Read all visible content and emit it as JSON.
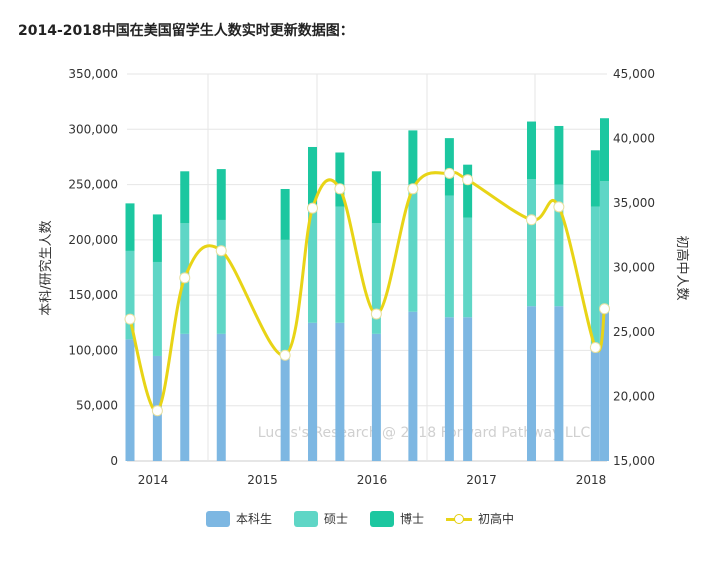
{
  "title": "2014-2018中国在美国留学生人数实时更新数据图：",
  "watermark": "Lucas's Research @ 2018 Forward Pathway LLC",
  "chart_data": {
    "type": "bar+line",
    "title": "2014-2018中国在美国留学生人数实时更新数据图：",
    "ylabel": "本科/研究生人数",
    "y2label": "初高中人数",
    "ylim": [
      0,
      350000
    ],
    "y2lim": [
      15000,
      45000
    ],
    "yticks": [
      "0",
      "50,000",
      "100,000",
      "150,000",
      "200,000",
      "250,000",
      "300,000",
      "350,000"
    ],
    "y2ticks": [
      "15,000",
      "20,000",
      "25,000",
      "30,000",
      "35,000",
      "40,000",
      "45,000"
    ],
    "xticks": [
      "2014",
      "2015",
      "2016",
      "2017",
      "2018"
    ],
    "x": [
      "2013-10",
      "2014-01",
      "2014-04",
      "2014-08",
      "2015-03",
      "2015-06",
      "2015-09",
      "2016-01",
      "2016-05",
      "2016-09",
      "2016-11",
      "2017-06",
      "2017-09",
      "2018-01",
      "2018-02"
    ],
    "grid": true,
    "legend": "bottom",
    "stacked": true,
    "series": [
      {
        "name": "本科生",
        "type": "bar",
        "axis": "left",
        "color": "#7db7e2",
        "values": [
          110000,
          95000,
          115000,
          115000,
          95000,
          125000,
          125000,
          115000,
          135000,
          130000,
          130000,
          140000,
          140000,
          100000,
          135000
        ]
      },
      {
        "name": "硕士",
        "type": "bar",
        "axis": "left",
        "color": "#5fd6c6",
        "values": [
          80000,
          85000,
          100000,
          103000,
          105000,
          105000,
          105000,
          100000,
          115000,
          110000,
          90000,
          115000,
          110000,
          130000,
          118000
        ]
      },
      {
        "name": "博士",
        "type": "bar",
        "axis": "left",
        "color": "#1cc7a0",
        "values": [
          43000,
          43000,
          47000,
          46000,
          46000,
          54000,
          49000,
          47000,
          49000,
          52000,
          48000,
          52000,
          53000,
          51000,
          57000
        ]
      },
      {
        "name": "初高中",
        "type": "line",
        "axis": "right",
        "color": "#e8d416",
        "values": [
          26000,
          18900,
          29200,
          31300,
          23200,
          34600,
          36100,
          26400,
          36100,
          37300,
          36800,
          33700,
          34700,
          23800,
          26800
        ]
      }
    ]
  }
}
